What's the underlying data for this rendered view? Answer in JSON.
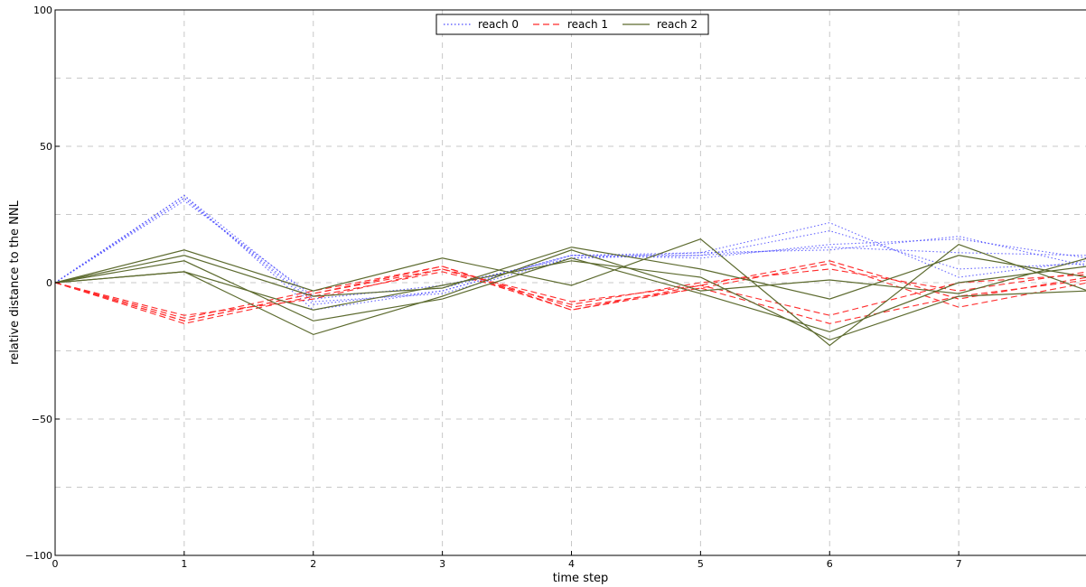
{
  "chart_data": {
    "type": "line",
    "xlabel": "time step",
    "ylabel": "relative distance to the NNL",
    "xlim": [
      0,
      8
    ],
    "ylim": [
      -100,
      100
    ],
    "x_ticks": [
      "0",
      "1",
      "2",
      "3",
      "4",
      "5",
      "6",
      "7"
    ],
    "y_ticks": [
      "100",
      "50",
      "0",
      "−50",
      "−100"
    ],
    "grid": true,
    "legend_position": "top-center",
    "legend": [
      {
        "label": "reach 0",
        "style": "dotted",
        "color": "#4a4aff"
      },
      {
        "label": "reach 1",
        "style": "dashed",
        "color": "#ff2a2a"
      },
      {
        "label": "reach 2",
        "style": "solid",
        "color": "#5c6a2e"
      }
    ],
    "x": [
      0,
      1,
      2,
      3,
      4,
      5,
      6,
      7,
      8
    ],
    "series": [
      {
        "group": "reach 0",
        "values": [
          0,
          32,
          -10,
          -3,
          10,
          11,
          22,
          2,
          8
        ]
      },
      {
        "group": "reach 0",
        "values": [
          0,
          31,
          -7,
          -4,
          9,
          10,
          19,
          5,
          7
        ]
      },
      {
        "group": "reach 0",
        "values": [
          0,
          30,
          -5,
          -2,
          10,
          9,
          14,
          16,
          9
        ]
      },
      {
        "group": "reach 0",
        "values": [
          0,
          32,
          -6,
          -1,
          9,
          11,
          12,
          17,
          6
        ]
      },
      {
        "group": "reach 0",
        "values": [
          0,
          31,
          -8,
          -3,
          10,
          10,
          13,
          11,
          10
        ]
      },
      {
        "group": "reach 1",
        "values": [
          0,
          -14,
          -4,
          5,
          -10,
          -1,
          8,
          -6,
          2
        ]
      },
      {
        "group": "reach 1",
        "values": [
          0,
          -13,
          -3,
          6,
          -9,
          -2,
          7,
          -9,
          0
        ]
      },
      {
        "group": "reach 1",
        "values": [
          0,
          -15,
          -5,
          4,
          -8,
          0,
          5,
          -3,
          4
        ]
      },
      {
        "group": "reach 1",
        "values": [
          0,
          -12,
          -6,
          5,
          -7,
          -1,
          -12,
          0,
          3
        ]
      },
      {
        "group": "reach 1",
        "values": [
          0,
          -14,
          -4,
          6,
          -10,
          -2,
          -15,
          -5,
          1
        ]
      },
      {
        "group": "reach 2",
        "values": [
          0,
          12,
          -3,
          9,
          -1,
          16,
          -23,
          14,
          -3
        ]
      },
      {
        "group": "reach 2",
        "values": [
          0,
          10,
          -5,
          -2,
          13,
          5,
          -6,
          10,
          2
        ]
      },
      {
        "group": "reach 2",
        "values": [
          0,
          4,
          -19,
          -5,
          12,
          -3,
          1,
          -4,
          9
        ]
      },
      {
        "group": "reach 2",
        "values": [
          0,
          8,
          -14,
          -6,
          9,
          -4,
          -18,
          0,
          6
        ]
      },
      {
        "group": "reach 2",
        "values": [
          0,
          4,
          -10,
          -1,
          8,
          2,
          -21,
          -5,
          -3
        ]
      }
    ]
  }
}
